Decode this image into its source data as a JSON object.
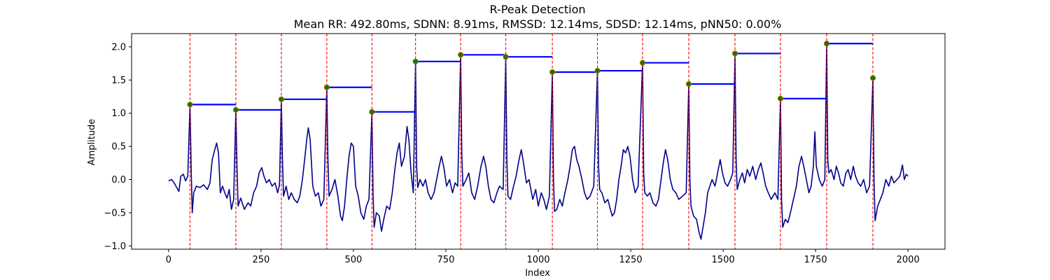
{
  "chart_data": {
    "type": "line",
    "title": "R-Peak Detection",
    "subtitle": "Mean RR: 492.80ms, SDNN: 8.91ms, RMSSD: 12.14ms, SDSD: 12.14ms, pNN50: 0.00%",
    "xlabel": "Index",
    "ylabel": "Amplitude",
    "xlim": [
      -100,
      2100
    ],
    "ylim": [
      -1.05,
      2.2
    ],
    "xticks": [
      0,
      250,
      500,
      750,
      1000,
      1250,
      1500,
      1750,
      2000
    ],
    "yticks": [
      -1.0,
      -0.5,
      0.0,
      0.5,
      1.0,
      1.5,
      2.0
    ],
    "grid": false,
    "colors": {
      "signal": "#00008b",
      "peak_marker_fill": "#008000",
      "peak_marker_edge": "#cc6600",
      "peak_line": "#ff0000",
      "rr_segment": "#0000ff"
    },
    "peaks": [
      {
        "x": 58,
        "y": 1.13
      },
      {
        "x": 182,
        "y": 1.05
      },
      {
        "x": 305,
        "y": 1.21
      },
      {
        "x": 428,
        "y": 1.39
      },
      {
        "x": 550,
        "y": 1.02
      },
      {
        "x": 668,
        "y": 1.78
      },
      {
        "x": 790,
        "y": 1.88
      },
      {
        "x": 912,
        "y": 1.85
      },
      {
        "x": 1038,
        "y": 1.62
      },
      {
        "x": 1160,
        "y": 1.64
      },
      {
        "x": 1282,
        "y": 1.76
      },
      {
        "x": 1407,
        "y": 1.44
      },
      {
        "x": 1532,
        "y": 1.9
      },
      {
        "x": 1655,
        "y": 1.22
      },
      {
        "x": 1780,
        "y": 2.05
      },
      {
        "x": 1905,
        "y": 1.53
      }
    ],
    "rr_segments": [
      {
        "x0": 58,
        "x1": 182,
        "y": 1.13
      },
      {
        "x0": 182,
        "x1": 305,
        "y": 1.05
      },
      {
        "x0": 305,
        "x1": 428,
        "y": 1.21
      },
      {
        "x0": 428,
        "x1": 550,
        "y": 1.39
      },
      {
        "x0": 550,
        "x1": 668,
        "y": 1.02
      },
      {
        "x0": 668,
        "x1": 790,
        "y": 1.78
      },
      {
        "x0": 790,
        "x1": 912,
        "y": 1.88
      },
      {
        "x0": 912,
        "x1": 1038,
        "y": 1.85
      },
      {
        "x0": 1038,
        "x1": 1160,
        "y": 1.62
      },
      {
        "x0": 1160,
        "x1": 1282,
        "y": 1.64
      },
      {
        "x0": 1282,
        "x1": 1407,
        "y": 1.76
      },
      {
        "x0": 1407,
        "x1": 1532,
        "y": 1.44
      },
      {
        "x0": 1532,
        "x1": 1655,
        "y": 1.9
      },
      {
        "x0": 1655,
        "x1": 1780,
        "y": 1.22
      },
      {
        "x0": 1780,
        "x1": 1905,
        "y": 2.05
      }
    ],
    "signal": [
      [
        0,
        -0.02
      ],
      [
        8,
        0.0
      ],
      [
        15,
        -0.05
      ],
      [
        22,
        -0.12
      ],
      [
        28,
        -0.18
      ],
      [
        33,
        0.05
      ],
      [
        40,
        0.08
      ],
      [
        46,
        -0.02
      ],
      [
        52,
        0.05
      ],
      [
        58,
        1.13
      ],
      [
        61,
        0.2
      ],
      [
        64,
        -0.5
      ],
      [
        68,
        -0.2
      ],
      [
        75,
        -0.1
      ],
      [
        85,
        -0.12
      ],
      [
        95,
        -0.08
      ],
      [
        105,
        -0.15
      ],
      [
        112,
        -0.05
      ],
      [
        118,
        0.3
      ],
      [
        125,
        0.45
      ],
      [
        130,
        0.55
      ],
      [
        135,
        0.4
      ],
      [
        140,
        -0.2
      ],
      [
        146,
        -0.1
      ],
      [
        152,
        -0.2
      ],
      [
        158,
        -0.28
      ],
      [
        164,
        -0.15
      ],
      [
        170,
        -0.45
      ],
      [
        176,
        -0.3
      ],
      [
        182,
        1.05
      ],
      [
        185,
        0.2
      ],
      [
        188,
        -0.4
      ],
      [
        195,
        -0.28
      ],
      [
        205,
        -0.45
      ],
      [
        215,
        -0.35
      ],
      [
        222,
        -0.4
      ],
      [
        230,
        -0.2
      ],
      [
        238,
        -0.1
      ],
      [
        245,
        0.1
      ],
      [
        252,
        0.18
      ],
      [
        258,
        0.05
      ],
      [
        265,
        -0.05
      ],
      [
        272,
        0.0
      ],
      [
        280,
        -0.1
      ],
      [
        288,
        -0.05
      ],
      [
        295,
        -0.2
      ],
      [
        300,
        -0.08
      ],
      [
        305,
        1.21
      ],
      [
        308,
        0.3
      ],
      [
        311,
        -0.25
      ],
      [
        318,
        -0.1
      ],
      [
        325,
        -0.3
      ],
      [
        332,
        -0.2
      ],
      [
        340,
        -0.3
      ],
      [
        348,
        -0.35
      ],
      [
        355,
        -0.25
      ],
      [
        362,
        0.0
      ],
      [
        368,
        0.3
      ],
      [
        374,
        0.62
      ],
      [
        378,
        0.78
      ],
      [
        383,
        0.6
      ],
      [
        390,
        -0.1
      ],
      [
        397,
        -0.25
      ],
      [
        405,
        -0.2
      ],
      [
        412,
        -0.4
      ],
      [
        420,
        -0.3
      ],
      [
        428,
        1.39
      ],
      [
        431,
        0.3
      ],
      [
        434,
        -0.25
      ],
      [
        442,
        -0.15
      ],
      [
        450,
        0.0
      ],
      [
        458,
        -0.25
      ],
      [
        465,
        -0.55
      ],
      [
        470,
        -0.62
      ],
      [
        476,
        -0.4
      ],
      [
        482,
        0.0
      ],
      [
        488,
        0.35
      ],
      [
        494,
        0.55
      ],
      [
        500,
        0.5
      ],
      [
        506,
        -0.1
      ],
      [
        513,
        -0.25
      ],
      [
        520,
        -0.5
      ],
      [
        528,
        -0.6
      ],
      [
        535,
        -0.4
      ],
      [
        542,
        -0.3
      ],
      [
        550,
        1.02
      ],
      [
        553,
        -0.2
      ],
      [
        556,
        -0.72
      ],
      [
        562,
        -0.5
      ],
      [
        570,
        -0.55
      ],
      [
        576,
        -0.78
      ],
      [
        582,
        -0.6
      ],
      [
        590,
        -0.4
      ],
      [
        598,
        -0.45
      ],
      [
        605,
        -0.2
      ],
      [
        612,
        0.15
      ],
      [
        618,
        0.4
      ],
      [
        624,
        0.55
      ],
      [
        630,
        0.2
      ],
      [
        638,
        0.35
      ],
      [
        645,
        0.8
      ],
      [
        650,
        0.6
      ],
      [
        656,
        0.1
      ],
      [
        662,
        -0.2
      ],
      [
        668,
        1.78
      ],
      [
        671,
        0.2
      ],
      [
        674,
        -0.12
      ],
      [
        680,
        0.0
      ],
      [
        688,
        -0.1
      ],
      [
        695,
        0.0
      ],
      [
        702,
        -0.2
      ],
      [
        710,
        -0.3
      ],
      [
        718,
        -0.2
      ],
      [
        725,
        0.0
      ],
      [
        732,
        0.2
      ],
      [
        738,
        0.35
      ],
      [
        744,
        0.2
      ],
      [
        752,
        -0.1
      ],
      [
        760,
        0.0
      ],
      [
        768,
        -0.2
      ],
      [
        775,
        -0.05
      ],
      [
        782,
        -0.1
      ],
      [
        790,
        1.88
      ],
      [
        793,
        0.4
      ],
      [
        796,
        -0.1
      ],
      [
        805,
        0.0
      ],
      [
        812,
        0.1
      ],
      [
        820,
        -0.2
      ],
      [
        828,
        -0.3
      ],
      [
        836,
        -0.1
      ],
      [
        845,
        0.2
      ],
      [
        852,
        0.35
      ],
      [
        858,
        0.2
      ],
      [
        865,
        -0.1
      ],
      [
        872,
        -0.3
      ],
      [
        880,
        -0.35
      ],
      [
        888,
        -0.2
      ],
      [
        895,
        -0.1
      ],
      [
        905,
        -0.15
      ],
      [
        912,
        1.85
      ],
      [
        915,
        0.3
      ],
      [
        918,
        -0.25
      ],
      [
        925,
        -0.3
      ],
      [
        933,
        -0.1
      ],
      [
        940,
        0.05
      ],
      [
        948,
        0.3
      ],
      [
        954,
        0.45
      ],
      [
        960,
        0.25
      ],
      [
        968,
        -0.05
      ],
      [
        975,
        0.0
      ],
      [
        985,
        -0.3
      ],
      [
        993,
        -0.15
      ],
      [
        1000,
        -0.4
      ],
      [
        1008,
        -0.2
      ],
      [
        1015,
        -0.3
      ],
      [
        1022,
        -0.45
      ],
      [
        1030,
        -0.25
      ],
      [
        1038,
        1.62
      ],
      [
        1041,
        0.0
      ],
      [
        1044,
        -0.48
      ],
      [
        1050,
        -0.45
      ],
      [
        1058,
        -0.3
      ],
      [
        1065,
        -0.4
      ],
      [
        1072,
        -0.2
      ],
      [
        1080,
        0.0
      ],
      [
        1086,
        0.2
      ],
      [
        1092,
        0.45
      ],
      [
        1098,
        0.5
      ],
      [
        1104,
        0.3
      ],
      [
        1110,
        0.2
      ],
      [
        1118,
        0.0
      ],
      [
        1125,
        -0.2
      ],
      [
        1132,
        -0.3
      ],
      [
        1140,
        -0.25
      ],
      [
        1150,
        -0.1
      ],
      [
        1160,
        1.64
      ],
      [
        1163,
        0.2
      ],
      [
        1166,
        -0.15
      ],
      [
        1172,
        -0.2
      ],
      [
        1180,
        -0.35
      ],
      [
        1188,
        -0.3
      ],
      [
        1195,
        -0.45
      ],
      [
        1200,
        -0.55
      ],
      [
        1206,
        -0.5
      ],
      [
        1212,
        -0.3
      ],
      [
        1218,
        0.0
      ],
      [
        1224,
        0.2
      ],
      [
        1230,
        0.45
      ],
      [
        1236,
        0.4
      ],
      [
        1242,
        0.5
      ],
      [
        1248,
        0.35
      ],
      [
        1255,
        0.0
      ],
      [
        1262,
        -0.2
      ],
      [
        1270,
        -0.1
      ],
      [
        1282,
        1.76
      ],
      [
        1285,
        0.1
      ],
      [
        1288,
        -0.2
      ],
      [
        1295,
        -0.25
      ],
      [
        1302,
        -0.2
      ],
      [
        1310,
        -0.35
      ],
      [
        1318,
        -0.4
      ],
      [
        1325,
        -0.3
      ],
      [
        1332,
        0.0
      ],
      [
        1338,
        0.25
      ],
      [
        1344,
        0.45
      ],
      [
        1350,
        0.3
      ],
      [
        1357,
        0.0
      ],
      [
        1364,
        -0.15
      ],
      [
        1372,
        -0.2
      ],
      [
        1380,
        -0.3
      ],
      [
        1390,
        -0.25
      ],
      [
        1400,
        -0.2
      ],
      [
        1407,
        1.44
      ],
      [
        1410,
        0.0
      ],
      [
        1413,
        -0.4
      ],
      [
        1420,
        -0.55
      ],
      [
        1428,
        -0.6
      ],
      [
        1435,
        -0.8
      ],
      [
        1440,
        -0.9
      ],
      [
        1446,
        -0.7
      ],
      [
        1452,
        -0.5
      ],
      [
        1458,
        -0.2
      ],
      [
        1464,
        -0.1
      ],
      [
        1470,
        0.0
      ],
      [
        1478,
        -0.1
      ],
      [
        1485,
        0.1
      ],
      [
        1492,
        0.3
      ],
      [
        1498,
        0.1
      ],
      [
        1505,
        -0.05
      ],
      [
        1512,
        -0.1
      ],
      [
        1520,
        0.0
      ],
      [
        1526,
        0.1
      ],
      [
        1532,
        1.9
      ],
      [
        1535,
        0.3
      ],
      [
        1538,
        -0.15
      ],
      [
        1545,
        0.0
      ],
      [
        1552,
        0.1
      ],
      [
        1558,
        -0.05
      ],
      [
        1565,
        0.15
      ],
      [
        1572,
        0.05
      ],
      [
        1580,
        0.2
      ],
      [
        1588,
        0.0
      ],
      [
        1595,
        0.15
      ],
      [
        1602,
        0.25
      ],
      [
        1608,
        0.1
      ],
      [
        1615,
        -0.1
      ],
      [
        1622,
        -0.2
      ],
      [
        1630,
        -0.3
      ],
      [
        1640,
        -0.2
      ],
      [
        1648,
        -0.3
      ],
      [
        1655,
        1.22
      ],
      [
        1658,
        -0.3
      ],
      [
        1661,
        -0.72
      ],
      [
        1668,
        -0.6
      ],
      [
        1675,
        -0.65
      ],
      [
        1682,
        -0.5
      ],
      [
        1690,
        -0.3
      ],
      [
        1698,
        -0.1
      ],
      [
        1705,
        0.2
      ],
      [
        1712,
        0.35
      ],
      [
        1718,
        0.2
      ],
      [
        1725,
        0.0
      ],
      [
        1732,
        -0.2
      ],
      [
        1738,
        -0.1
      ],
      [
        1744,
        0.2
      ],
      [
        1748,
        0.72
      ],
      [
        1752,
        0.2
      ],
      [
        1760,
        0.0
      ],
      [
        1768,
        -0.1
      ],
      [
        1775,
        0.0
      ],
      [
        1780,
        2.05
      ],
      [
        1783,
        0.3
      ],
      [
        1786,
        0.1
      ],
      [
        1792,
        0.15
      ],
      [
        1800,
        0.0
      ],
      [
        1806,
        0.2
      ],
      [
        1812,
        0.1
      ],
      [
        1818,
        -0.05
      ],
      [
        1825,
        -0.1
      ],
      [
        1832,
        0.1
      ],
      [
        1838,
        0.15
      ],
      [
        1845,
        0.0
      ],
      [
        1852,
        0.2
      ],
      [
        1858,
        0.05
      ],
      [
        1865,
        -0.05
      ],
      [
        1872,
        -0.1
      ],
      [
        1880,
        0.0
      ],
      [
        1888,
        -0.2
      ],
      [
        1896,
        -0.1
      ],
      [
        1905,
        1.53
      ],
      [
        1908,
        0.0
      ],
      [
        1911,
        -0.62
      ],
      [
        1918,
        -0.4
      ],
      [
        1925,
        -0.3
      ],
      [
        1932,
        -0.2
      ],
      [
        1940,
        0.0
      ],
      [
        1948,
        -0.1
      ],
      [
        1955,
        0.05
      ],
      [
        1962,
        -0.05
      ],
      [
        1970,
        0.0
      ],
      [
        1978,
        0.05
      ],
      [
        1985,
        0.22
      ],
      [
        1990,
        0.0
      ],
      [
        1995,
        0.08
      ],
      [
        2000,
        0.05
      ]
    ]
  }
}
